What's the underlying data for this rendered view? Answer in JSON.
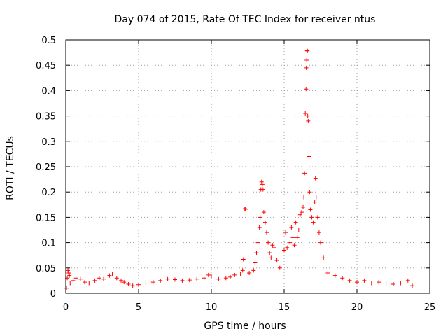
{
  "chart_data": {
    "type": "scatter",
    "title": "Day 074 of 2015, Rate Of TEC Index for receiver ntus",
    "xlabel": "GPS time / hours",
    "ylabel": "ROTI / TECUs",
    "xlim": [
      0,
      25
    ],
    "ylim": [
      0,
      0.5
    ],
    "xticks": [
      0,
      5,
      10,
      15,
      20,
      25
    ],
    "yticks": [
      0,
      0.05,
      0.1,
      0.15,
      0.2,
      0.25,
      0.3,
      0.35,
      0.4,
      0.45,
      0.5
    ],
    "grid": true,
    "marker": "+",
    "color": "#ff0000",
    "series": [
      {
        "name": "ROTI",
        "points": [
          [
            0.05,
            0.01
          ],
          [
            0.1,
            0.03
          ],
          [
            0.15,
            0.045
          ],
          [
            0.2,
            0.04
          ],
          [
            0.25,
            0.035
          ],
          [
            0.3,
            0.02
          ],
          [
            0.5,
            0.025
          ],
          [
            0.7,
            0.03
          ],
          [
            1.0,
            0.028
          ],
          [
            1.3,
            0.022
          ],
          [
            1.6,
            0.02
          ],
          [
            2.0,
            0.025
          ],
          [
            2.3,
            0.03
          ],
          [
            2.6,
            0.028
          ],
          [
            3.0,
            0.035
          ],
          [
            3.2,
            0.038
          ],
          [
            3.5,
            0.03
          ],
          [
            3.8,
            0.025
          ],
          [
            4.0,
            0.022
          ],
          [
            4.3,
            0.018
          ],
          [
            4.6,
            0.015
          ],
          [
            5.0,
            0.017
          ],
          [
            5.5,
            0.02
          ],
          [
            6.0,
            0.022
          ],
          [
            6.5,
            0.025
          ],
          [
            7.0,
            0.028
          ],
          [
            7.5,
            0.027
          ],
          [
            8.0,
            0.025
          ],
          [
            8.5,
            0.026
          ],
          [
            9.0,
            0.028
          ],
          [
            9.5,
            0.03
          ],
          [
            9.8,
            0.036
          ],
          [
            10.0,
            0.034
          ],
          [
            10.5,
            0.028
          ],
          [
            11.0,
            0.03
          ],
          [
            11.3,
            0.032
          ],
          [
            11.6,
            0.036
          ],
          [
            12.0,
            0.038
          ],
          [
            12.15,
            0.045
          ],
          [
            12.2,
            0.067
          ],
          [
            12.3,
            0.167
          ],
          [
            12.35,
            0.166
          ],
          [
            12.6,
            0.04
          ],
          [
            12.9,
            0.045
          ],
          [
            13.0,
            0.06
          ],
          [
            13.1,
            0.08
          ],
          [
            13.2,
            0.1
          ],
          [
            13.3,
            0.13
          ],
          [
            13.35,
            0.15
          ],
          [
            13.4,
            0.205
          ],
          [
            13.45,
            0.22
          ],
          [
            13.5,
            0.215
          ],
          [
            13.55,
            0.205
          ],
          [
            13.6,
            0.16
          ],
          [
            13.7,
            0.14
          ],
          [
            13.8,
            0.12
          ],
          [
            13.9,
            0.1
          ],
          [
            14.0,
            0.08
          ],
          [
            14.1,
            0.07
          ],
          [
            14.2,
            0.095
          ],
          [
            14.3,
            0.09
          ],
          [
            14.5,
            0.065
          ],
          [
            14.7,
            0.05
          ],
          [
            15.0,
            0.085
          ],
          [
            15.1,
            0.12
          ],
          [
            15.2,
            0.09
          ],
          [
            15.4,
            0.1
          ],
          [
            15.5,
            0.13
          ],
          [
            15.6,
            0.11
          ],
          [
            15.7,
            0.095
          ],
          [
            15.8,
            0.14
          ],
          [
            15.9,
            0.11
          ],
          [
            16.0,
            0.125
          ],
          [
            16.1,
            0.155
          ],
          [
            16.2,
            0.16
          ],
          [
            16.3,
            0.17
          ],
          [
            16.35,
            0.19
          ],
          [
            16.4,
            0.237
          ],
          [
            16.45,
            0.355
          ],
          [
            16.5,
            0.403
          ],
          [
            16.52,
            0.445
          ],
          [
            16.55,
            0.46
          ],
          [
            16.57,
            0.479
          ],
          [
            16.6,
            0.478
          ],
          [
            16.62,
            0.35
          ],
          [
            16.65,
            0.34
          ],
          [
            16.7,
            0.27
          ],
          [
            16.75,
            0.2
          ],
          [
            16.8,
            0.165
          ],
          [
            16.9,
            0.15
          ],
          [
            17.0,
            0.14
          ],
          [
            17.1,
            0.18
          ],
          [
            17.15,
            0.227
          ],
          [
            17.2,
            0.19
          ],
          [
            17.3,
            0.15
          ],
          [
            17.4,
            0.12
          ],
          [
            17.5,
            0.1
          ],
          [
            17.7,
            0.07
          ],
          [
            18.0,
            0.04
          ],
          [
            18.5,
            0.035
          ],
          [
            19.0,
            0.03
          ],
          [
            19.5,
            0.025
          ],
          [
            20.0,
            0.022
          ],
          [
            20.5,
            0.025
          ],
          [
            21.0,
            0.02
          ],
          [
            21.5,
            0.022
          ],
          [
            22.0,
            0.02
          ],
          [
            22.5,
            0.018
          ],
          [
            23.0,
            0.02
          ],
          [
            23.5,
            0.025
          ],
          [
            23.8,
            0.015
          ]
        ]
      }
    ]
  }
}
